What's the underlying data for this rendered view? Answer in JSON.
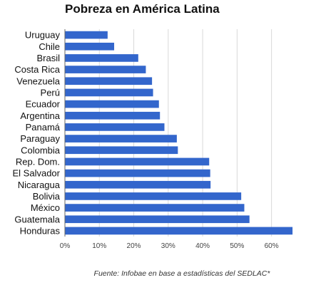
{
  "chart_data": {
    "type": "bar",
    "orientation": "horizontal",
    "title": "Pobreza en América Latina",
    "categories": [
      "Uruguay",
      "Chile",
      "Brasil",
      "Costa Rica",
      "Venezuela",
      "Perú",
      "Ecuador",
      "Argentina",
      "Panamá",
      "Paraguay",
      "Colombia",
      "Rep. Dom.",
      "El Salvador",
      "Nicaragua",
      "Bolivia",
      "México",
      "Guatemala",
      "Honduras"
    ],
    "values": [
      12.4,
      14.3,
      21.3,
      23.5,
      25.3,
      25.6,
      27.3,
      27.6,
      28.9,
      32.5,
      32.8,
      41.9,
      42.2,
      42.3,
      51.2,
      52.1,
      53.6,
      66.1
    ],
    "xlim": [
      0,
      66.5
    ],
    "xticks": [
      0,
      10,
      20,
      30,
      40,
      50,
      60
    ],
    "tick_labels": [
      "0%",
      "10%",
      "20%",
      "30%",
      "40%",
      "50%",
      "60%"
    ],
    "xlabel": "",
    "ylabel": "",
    "grid": "vertical",
    "legend": "none",
    "bar_color": "#3366cc",
    "source_note": "Fuente: Infobae en base a estadísticas del SEDLAC*"
  }
}
